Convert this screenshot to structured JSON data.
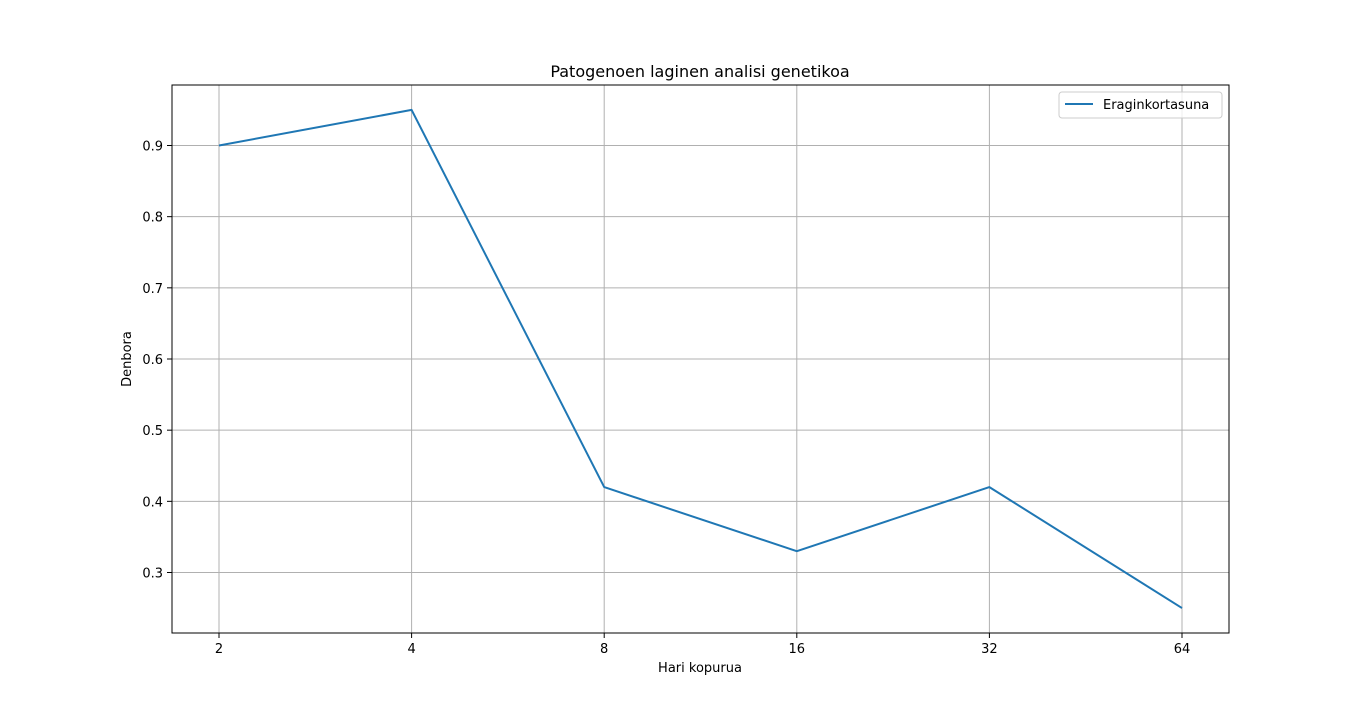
{
  "chart_data": {
    "type": "line",
    "title": "Patogenoen laginen analisi genetikoa",
    "xlabel": "Hari kopurua",
    "ylabel": "Denbora",
    "x_scale": "log2",
    "x": [
      2,
      4,
      8,
      16,
      32,
      64
    ],
    "x_tick_labels": [
      "2",
      "4",
      "8",
      "16",
      "32",
      "64"
    ],
    "y_ticks": [
      0.3,
      0.4,
      0.5,
      0.6,
      0.7,
      0.8,
      0.9
    ],
    "y_tick_labels": [
      "0.3",
      "0.4",
      "0.5",
      "0.6",
      "0.7",
      "0.8",
      "0.9"
    ],
    "ylim": [
      0.215,
      0.985
    ],
    "grid": true,
    "legend_position": "top-right",
    "series": [
      {
        "name": "Eraginkortasuna",
        "color": "#1f77b4",
        "values": [
          0.9,
          0.95,
          0.42,
          0.33,
          0.42,
          0.25
        ]
      }
    ]
  }
}
